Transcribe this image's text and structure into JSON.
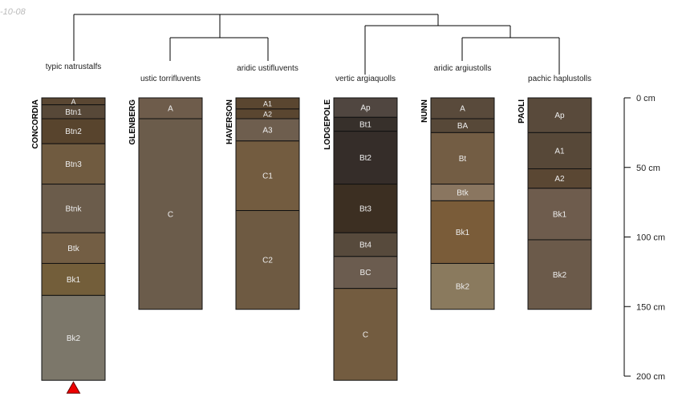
{
  "date_label": "-10-08",
  "depth_axis": {
    "unit": "cm",
    "ticks": [
      0,
      50,
      100,
      150,
      200
    ],
    "tick_labels": [
      "0 cm",
      "50 cm",
      "100 cm",
      "150 cm",
      "200 cm"
    ]
  },
  "profiles": [
    {
      "name": "CONCORDIA",
      "taxon": "typic natrustalfs",
      "marker": true,
      "horizons": [
        {
          "name": "A",
          "top": 0,
          "bottom": 5,
          "color": "#5a4733"
        },
        {
          "name": "Btn1",
          "top": 5,
          "bottom": 15,
          "color": "#574838"
        },
        {
          "name": "Btn2",
          "top": 15,
          "bottom": 33,
          "color": "#58442d"
        },
        {
          "name": "Btn3",
          "top": 33,
          "bottom": 62,
          "color": "#705b40"
        },
        {
          "name": "Btnk",
          "top": 62,
          "bottom": 97,
          "color": "#6b5c4b"
        },
        {
          "name": "Btk",
          "top": 97,
          "bottom": 119,
          "color": "#735e44"
        },
        {
          "name": "Bk1",
          "top": 119,
          "bottom": 142,
          "color": "#735e3a"
        },
        {
          "name": "Bk2",
          "top": 142,
          "bottom": 203,
          "color": "#7c776a"
        }
      ]
    },
    {
      "name": "GLENBERG",
      "taxon": "ustic torrifluvents",
      "horizons": [
        {
          "name": "A",
          "top": 0,
          "bottom": 15,
          "color": "#6e5c4b"
        },
        {
          "name": "C",
          "top": 15,
          "bottom": 152,
          "color": "#6b5c4b"
        }
      ]
    },
    {
      "name": "HAVERSON",
      "taxon": "aridic ustifluvents",
      "horizons": [
        {
          "name": "A1",
          "top": 0,
          "bottom": 8,
          "color": "#5a4630"
        },
        {
          "name": "A2",
          "top": 8,
          "bottom": 15,
          "color": "#5a4630"
        },
        {
          "name": "A3",
          "top": 15,
          "bottom": 31,
          "color": "#6e5e4e"
        },
        {
          "name": "C1",
          "top": 31,
          "bottom": 81,
          "color": "#735c40"
        },
        {
          "name": "C2",
          "top": 81,
          "bottom": 152,
          "color": "#6e5a42"
        }
      ]
    },
    {
      "name": "LODGEPOLE",
      "taxon": "vertic argiaquolls",
      "horizons": [
        {
          "name": "Ap",
          "top": 0,
          "bottom": 14,
          "color": "#504640"
        },
        {
          "name": "Bt1",
          "top": 14,
          "bottom": 24,
          "color": "#37302b"
        },
        {
          "name": "Bt2",
          "top": 24,
          "bottom": 62,
          "color": "#352d29"
        },
        {
          "name": "Bt3",
          "top": 62,
          "bottom": 97,
          "color": "#3c2f22"
        },
        {
          "name": "Bt4",
          "top": 97,
          "bottom": 114,
          "color": "#574a3c"
        },
        {
          "name": "BC",
          "top": 114,
          "bottom": 137,
          "color": "#6b5c4f"
        },
        {
          "name": "C",
          "top": 137,
          "bottom": 203,
          "color": "#735c40"
        }
      ]
    },
    {
      "name": "NUNN",
      "taxon": "aridic argiustolls",
      "horizons": [
        {
          "name": "A",
          "top": 0,
          "bottom": 15,
          "color": "#594a3b"
        },
        {
          "name": "BA",
          "top": 15,
          "bottom": 25,
          "color": "#574838"
        },
        {
          "name": "Bt",
          "top": 25,
          "bottom": 62,
          "color": "#735d44"
        },
        {
          "name": "Btk",
          "top": 62,
          "bottom": 74,
          "color": "#8a7660"
        },
        {
          "name": "Bk1",
          "top": 74,
          "bottom": 119,
          "color": "#7a5c39"
        },
        {
          "name": "Bk2",
          "top": 119,
          "bottom": 152,
          "color": "#8a7a5e"
        }
      ]
    },
    {
      "name": "PAOLI",
      "taxon": "pachic haplustolls",
      "horizons": [
        {
          "name": "Ap",
          "top": 0,
          "bottom": 25,
          "color": "#594a3b"
        },
        {
          "name": "A1",
          "top": 25,
          "bottom": 51,
          "color": "#574838"
        },
        {
          "name": "A2",
          "top": 51,
          "bottom": 65,
          "color": "#5a4733"
        },
        {
          "name": "Bk1",
          "top": 65,
          "bottom": 102,
          "color": "#6e5c4d"
        },
        {
          "name": "Bk2",
          "top": 102,
          "bottom": 152,
          "color": "#6b5a4a"
        }
      ]
    }
  ]
}
